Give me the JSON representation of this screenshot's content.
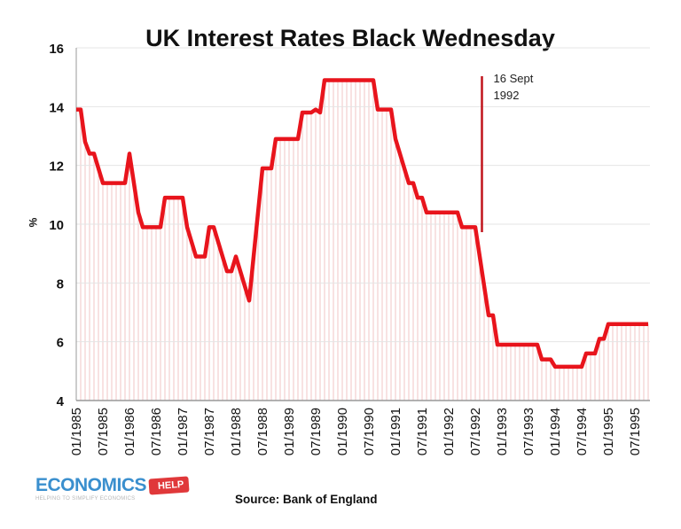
{
  "chart_data": {
    "type": "line",
    "title": "UK Interest Rates Black Wednesday",
    "xlabel": "",
    "ylabel": "%",
    "ylim": [
      4,
      16
    ],
    "yticks": [
      4,
      6,
      8,
      10,
      12,
      14,
      16
    ],
    "grid": true,
    "x_start": "01/1985",
    "x_interval": "monthly",
    "xtick_labels": [
      "01/1985",
      "07/1985",
      "01/1986",
      "07/1986",
      "01/1987",
      "07/1987",
      "01/1988",
      "07/1988",
      "01/1989",
      "07/1989",
      "01/1990",
      "07/1990",
      "01/1991",
      "07/1991",
      "01/1992",
      "07/1992",
      "01/1993",
      "07/1993",
      "01/1994",
      "07/1994",
      "01/1995",
      "07/1995"
    ],
    "series": [
      {
        "color": "#e8141c",
        "values": [
          13.9,
          13.9,
          12.8,
          12.4,
          12.4,
          11.9,
          11.4,
          11.4,
          11.4,
          11.4,
          11.4,
          11.4,
          12.4,
          11.4,
          10.4,
          9.9,
          9.9,
          9.9,
          9.9,
          9.9,
          10.9,
          10.9,
          10.9,
          10.9,
          10.9,
          9.9,
          9.4,
          8.9,
          8.9,
          8.9,
          9.9,
          9.9,
          9.4,
          8.9,
          8.4,
          8.4,
          8.9,
          8.4,
          7.9,
          7.4,
          8.9,
          10.4,
          11.9,
          11.9,
          11.9,
          12.9,
          12.9,
          12.9,
          12.9,
          12.9,
          12.9,
          13.8,
          13.8,
          13.8,
          13.9,
          13.8,
          14.9,
          14.9,
          14.9,
          14.9,
          14.9,
          14.9,
          14.9,
          14.9,
          14.9,
          14.9,
          14.9,
          14.9,
          13.9,
          13.9,
          13.9,
          13.9,
          12.9,
          12.4,
          11.9,
          11.4,
          11.4,
          10.9,
          10.9,
          10.4,
          10.4,
          10.4,
          10.4,
          10.4,
          10.4,
          10.4,
          10.4,
          9.9,
          9.9,
          9.9,
          9.9,
          8.9,
          7.9,
          6.9,
          6.9,
          5.9,
          5.9,
          5.9,
          5.9,
          5.9,
          5.9,
          5.9,
          5.9,
          5.9,
          5.9,
          5.4,
          5.4,
          5.4,
          5.15,
          5.15,
          5.15,
          5.15,
          5.15,
          5.15,
          5.15,
          5.6,
          5.6,
          5.6,
          6.1,
          6.1,
          6.6,
          6.6,
          6.6,
          6.6,
          6.6,
          6.6,
          6.6,
          6.6,
          6.6,
          6.6
        ]
      }
    ],
    "annotation": {
      "date": "09/1992",
      "label_line1": "16 Sept",
      "label_line2": "1992",
      "color": "#c0141c"
    }
  },
  "source": "Source: Bank of England",
  "logo": {
    "name": "ECONOMICS",
    "tag": "HELP",
    "tagline": "HELPING TO SIMPLIFY ECONOMICS"
  }
}
